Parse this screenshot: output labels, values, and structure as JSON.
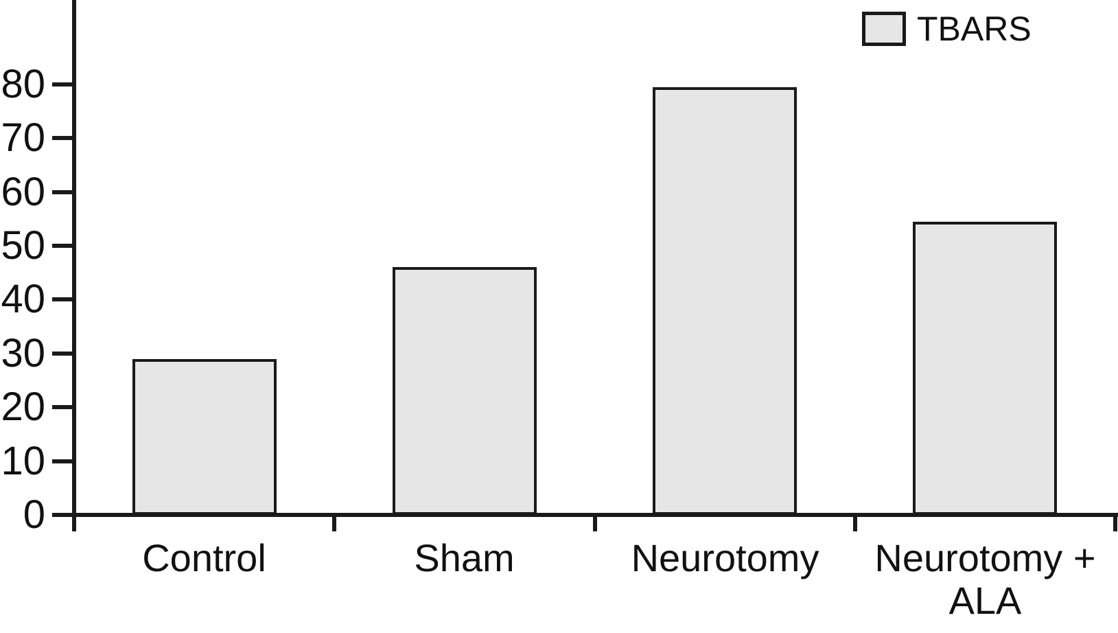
{
  "chart_data": {
    "type": "bar",
    "title": "",
    "xlabel": "",
    "ylabel": "",
    "categories": [
      "Control",
      "Sham",
      "Neurotomy",
      "Neurotomy + ALA"
    ],
    "x_tick_display": [
      "Control",
      "Sham",
      "Neurotomy",
      "Neurotomy +\nALA"
    ],
    "series": [
      {
        "name": "TBARS",
        "values": [
          29,
          46,
          79.5,
          54.5
        ]
      }
    ],
    "ylim": [
      0,
      80
    ],
    "yticks": [
      0,
      10,
      20,
      30,
      40,
      50,
      60,
      70,
      80
    ],
    "grid": false,
    "legend_position": "top-right",
    "colors": {
      "bar_fill": "#e6e6e6",
      "line": "#1a1a1a",
      "text": "#111111",
      "background": "#ffffff"
    }
  }
}
